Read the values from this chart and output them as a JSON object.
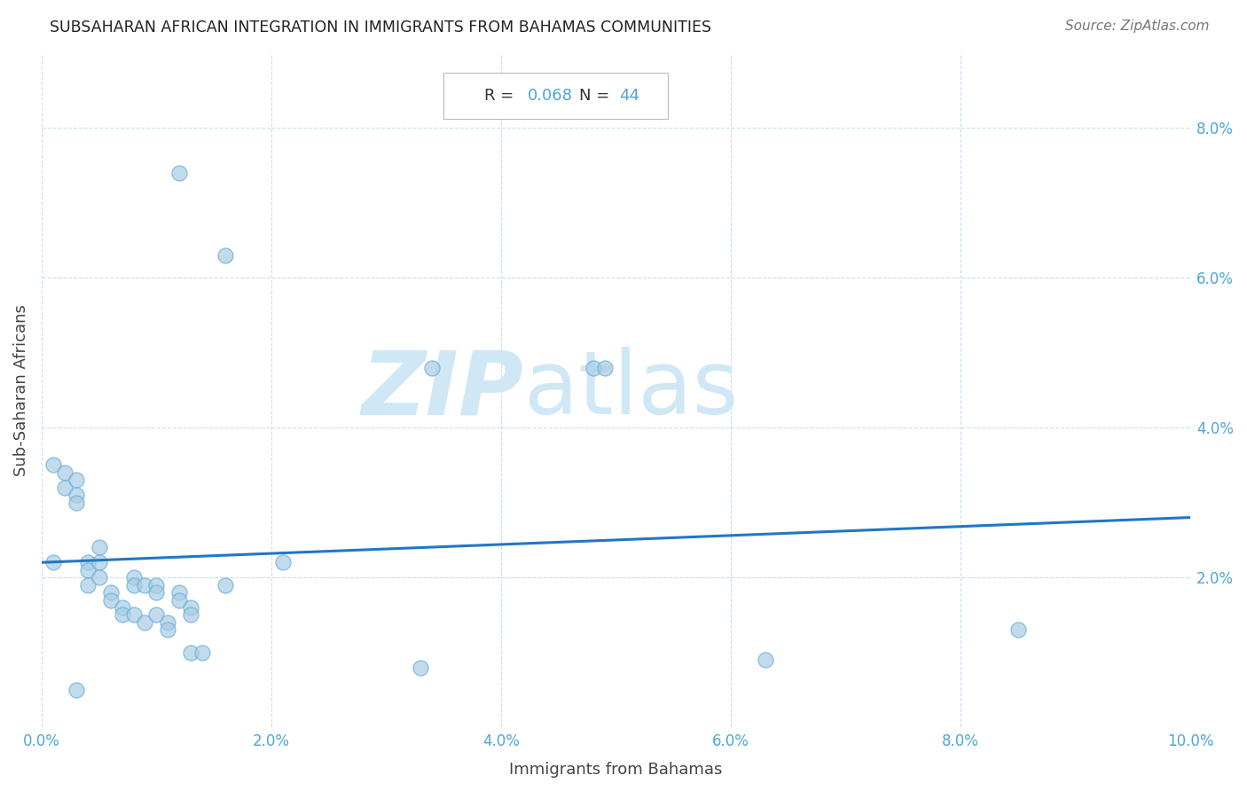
{
  "title": "SUBSAHARAN AFRICAN INTEGRATION IN IMMIGRANTS FROM BAHAMAS COMMUNITIES",
  "source": "Source: ZipAtlas.com",
  "xlabel": "Immigrants from Bahamas",
  "ylabel": "Sub-Saharan Africans",
  "R": 0.068,
  "N": 44,
  "xlim": [
    0.0,
    0.1
  ],
  "ylim": [
    0.0,
    0.09
  ],
  "xticks": [
    0.0,
    0.02,
    0.04,
    0.06,
    0.08,
    0.1
  ],
  "yticks": [
    0.0,
    0.02,
    0.04,
    0.06,
    0.08
  ],
  "ytick_labels": [
    "",
    "2.0%",
    "4.0%",
    "6.0%",
    "8.0%"
  ],
  "xtick_labels": [
    "0.0%",
    "2.0%",
    "4.0%",
    "6.0%",
    "8.0%",
    "10.0%"
  ],
  "scatter_color": "#a8cce4",
  "scatter_edge_color": "#6aaed6",
  "scatter_alpha": 0.7,
  "line_color": "#2176c7",
  "watermark_zip": "ZIP",
  "watermark_atlas": "atlas",
  "watermark_color": "#d0e8f5",
  "points_x": [
    0.012,
    0.016,
    0.034,
    0.048,
    0.049,
    0.001,
    0.002,
    0.002,
    0.003,
    0.003,
    0.003,
    0.004,
    0.004,
    0.004,
    0.005,
    0.005,
    0.005,
    0.006,
    0.006,
    0.007,
    0.007,
    0.008,
    0.008,
    0.008,
    0.009,
    0.009,
    0.01,
    0.01,
    0.01,
    0.011,
    0.011,
    0.012,
    0.012,
    0.013,
    0.013,
    0.013,
    0.014,
    0.016,
    0.021,
    0.033,
    0.063,
    0.085,
    0.001,
    0.003
  ],
  "points_y": [
    0.074,
    0.063,
    0.048,
    0.048,
    0.048,
    0.035,
    0.034,
    0.032,
    0.033,
    0.031,
    0.03,
    0.022,
    0.021,
    0.019,
    0.024,
    0.022,
    0.02,
    0.018,
    0.017,
    0.016,
    0.015,
    0.02,
    0.019,
    0.015,
    0.019,
    0.014,
    0.019,
    0.018,
    0.015,
    0.014,
    0.013,
    0.018,
    0.017,
    0.016,
    0.015,
    0.01,
    0.01,
    0.019,
    0.022,
    0.008,
    0.009,
    0.013,
    0.022,
    0.005
  ],
  "line_x0": 0.0,
  "line_x1": 0.1,
  "line_y0": 0.022,
  "line_y1": 0.028
}
